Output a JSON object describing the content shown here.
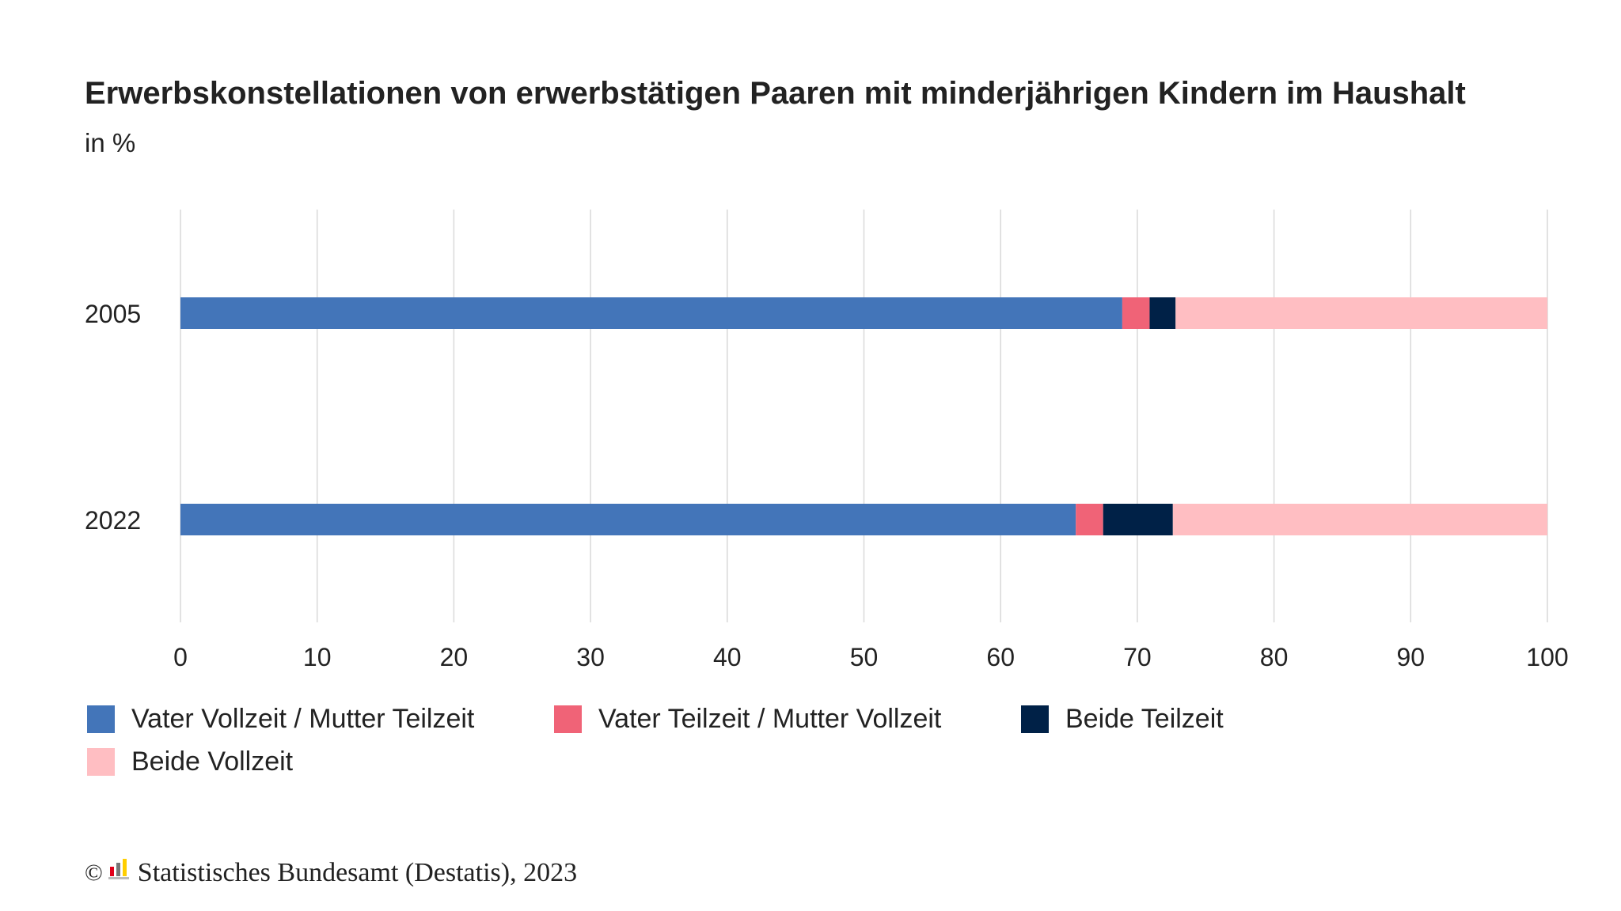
{
  "chart_data": {
    "type": "bar",
    "orientation": "horizontal",
    "stacked": true,
    "title": "Erwerbskonstellationen von erwerbstätigen Paaren mit minderjährigen Kindern im Haushalt",
    "subtitle": "in %",
    "categories": [
      "2005",
      "2022"
    ],
    "series": [
      {
        "name": "Vater Vollzeit / Mutter Teilzeit",
        "color": "#4375b9",
        "values": [
          68.9,
          65.5
        ]
      },
      {
        "name": "Vater Teilzeit / Mutter Vollzeit",
        "color": "#f06377",
        "values": [
          2.0,
          2.0
        ]
      },
      {
        "name": "Beide Teilzeit",
        "color": "#002147",
        "values": [
          1.9,
          5.1
        ]
      },
      {
        "name": "Beide Vollzeit",
        "color": "#ffbec2",
        "values": [
          27.2,
          27.4
        ]
      }
    ],
    "xlim": [
      0,
      100
    ],
    "xticks": [
      "0",
      "10",
      "20",
      "30",
      "40",
      "50",
      "60",
      "70",
      "80",
      "90",
      "100"
    ],
    "grid": true,
    "legend": "bottom"
  },
  "footer": {
    "copyright": "©",
    "source": "Statistisches Bundesamt (Destatis), 2023"
  }
}
